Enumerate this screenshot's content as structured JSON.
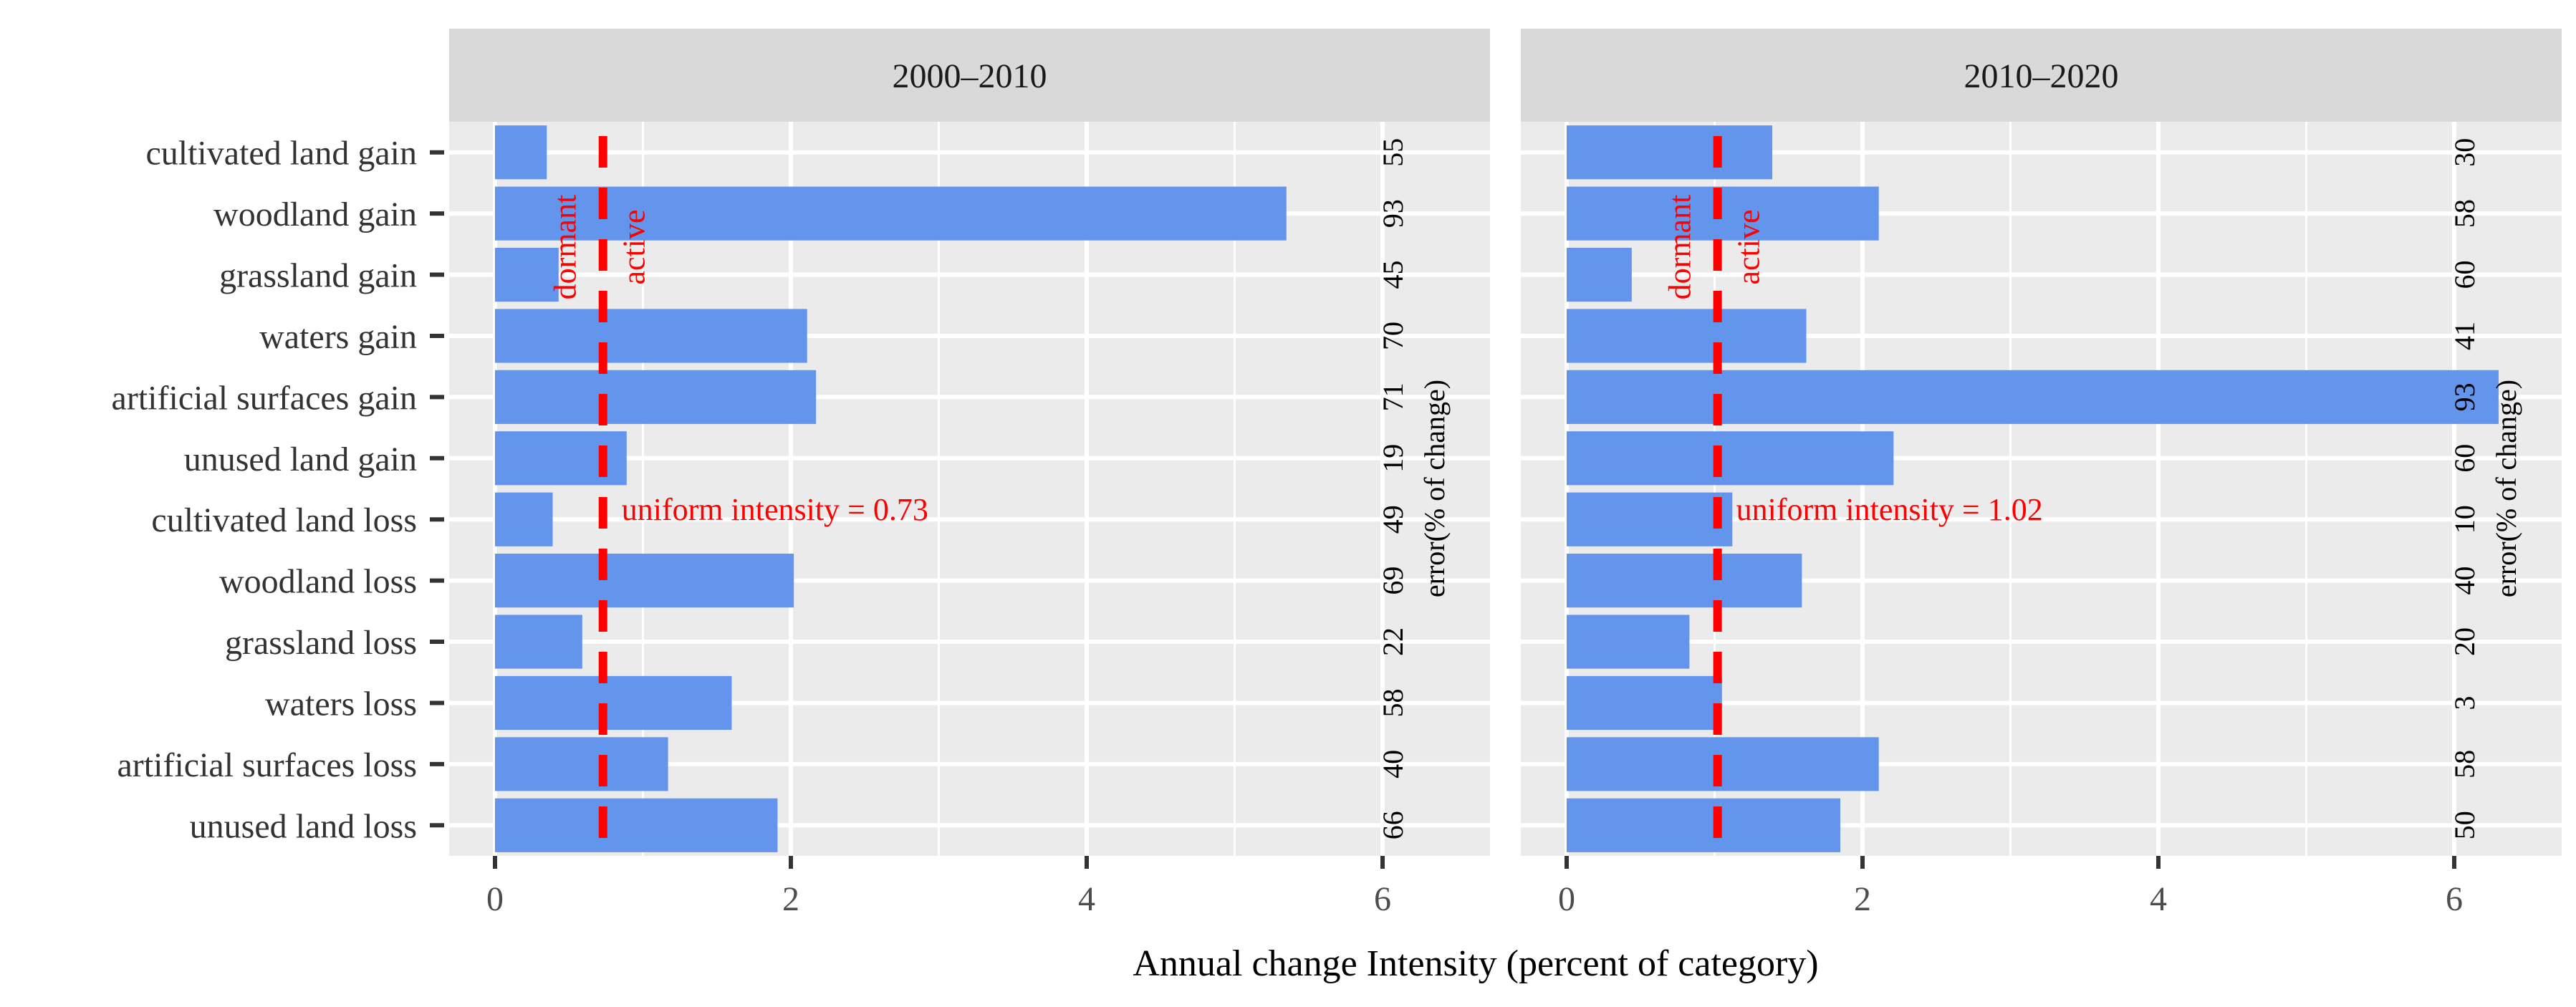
{
  "chart_data": {
    "type": "bar",
    "orientation": "horizontal",
    "xlabel": "Annual change Intensity (percent of category)",
    "categories": [
      "cultivated land gain",
      "woodland gain",
      "grassland gain",
      "waters gain",
      "artificial surfaces gain",
      "unused land gain",
      "cultivated land loss",
      "woodland loss",
      "grassland loss",
      "waters loss",
      "artificial surfaces loss",
      "unused land loss"
    ],
    "xlim": [
      -0.33,
      6.7
    ],
    "xticks": [
      0,
      2,
      4,
      6
    ],
    "grid": true,
    "bar_color": "#6495ED",
    "line_color": "#FF0000",
    "error_axis_label": "error(% of change)",
    "line_labels": {
      "dormant": "dormant",
      "active": "active"
    },
    "panels": [
      {
        "title": "2000–2010",
        "values": [
          0.35,
          5.35,
          0.43,
          2.11,
          2.17,
          0.89,
          0.39,
          2.02,
          0.59,
          1.6,
          1.17,
          1.91
        ],
        "uniform_intensity": 0.73,
        "uniform_label": "uniform intensity = 0.73",
        "errors": [
          "55",
          "93",
          "45",
          "70",
          "71",
          "19",
          "49",
          "69",
          "22",
          "58",
          "40",
          "66"
        ]
      },
      {
        "title": "2010–2020",
        "values": [
          1.39,
          2.11,
          0.44,
          1.62,
          6.3,
          2.21,
          1.12,
          1.59,
          0.83,
          1.05,
          2.11,
          1.85
        ],
        "uniform_intensity": 1.02,
        "uniform_label": "uniform intensity = 1.02",
        "errors": [
          "30",
          "58",
          "60",
          "41",
          "93",
          "60",
          "10",
          "40",
          "20",
          "3",
          "58",
          "50"
        ]
      }
    ]
  }
}
